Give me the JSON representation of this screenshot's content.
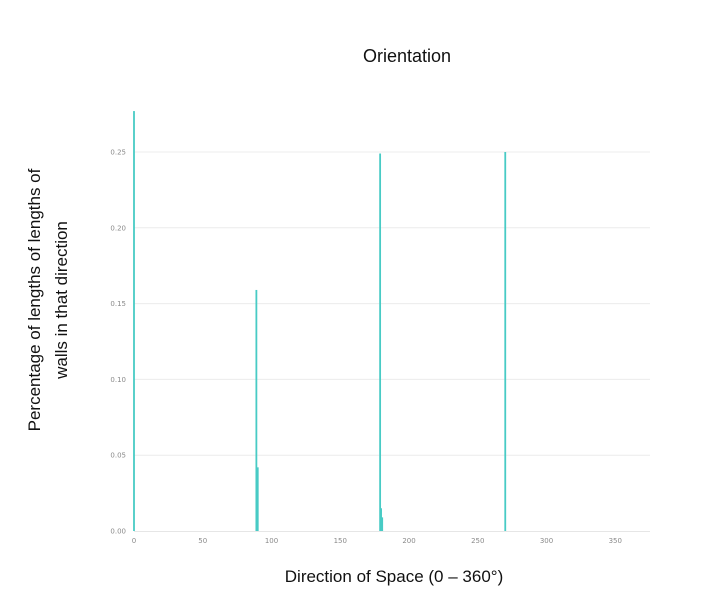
{
  "chart_data": {
    "type": "bar",
    "title": "Orientation",
    "xlabel": "Direction of Space (0 – 360°)",
    "ylabel_lines": [
      "Percentage of lengths  of lengths of",
      "walls in that direction"
    ],
    "xlim": [
      0,
      375
    ],
    "ylim": [
      0,
      0.28
    ],
    "xticks": [
      0,
      50,
      100,
      150,
      200,
      250,
      300,
      350
    ],
    "xtick_labels": [
      "0",
      "50",
      "100",
      "150",
      "200",
      "250",
      "300",
      "350"
    ],
    "yticks": [
      0,
      0.05,
      0.1,
      0.15,
      0.2,
      0.25
    ],
    "ytick_labels": [
      "0.00",
      "0.05",
      "0.10",
      "0.15",
      "0.20",
      "0.25"
    ],
    "grid": true,
    "bar_color": "#48cbc5",
    "bars": [
      {
        "x": 0,
        "value": 0.277
      },
      {
        "x": 89,
        "value": 0.159
      },
      {
        "x": 90,
        "value": 0.042
      },
      {
        "x": 179,
        "value": 0.249
      },
      {
        "x": 179.7,
        "value": 0.015
      },
      {
        "x": 180.5,
        "value": 0.009
      },
      {
        "x": 270,
        "value": 0.25
      }
    ]
  }
}
